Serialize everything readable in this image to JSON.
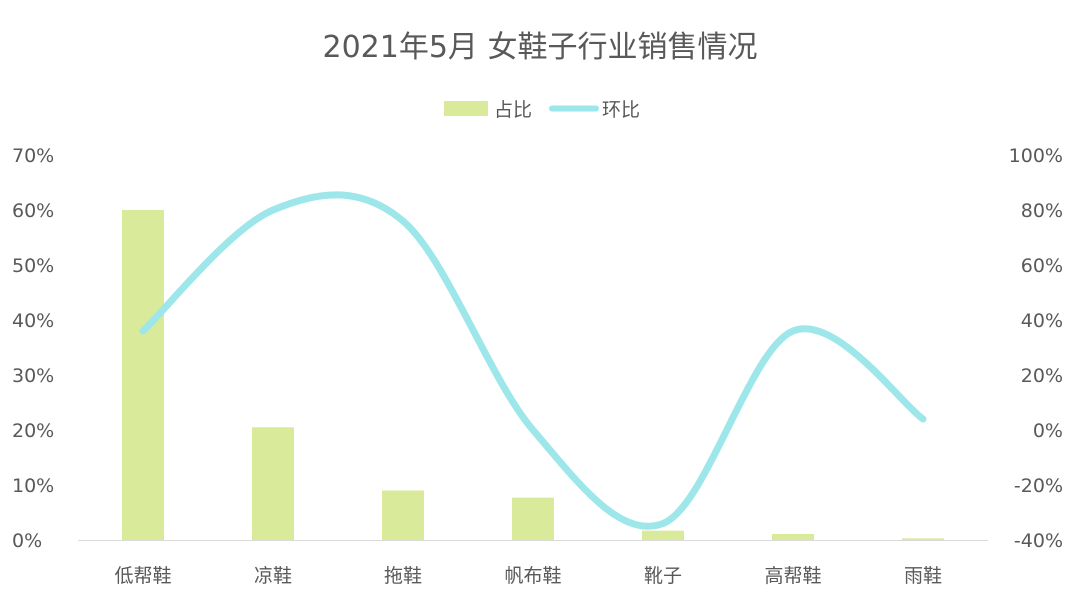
{
  "chart_data": {
    "type": "bar+line",
    "title": "2021年5月 女鞋子行业销售情况",
    "categories": [
      "低帮鞋",
      "凉鞋",
      "拖鞋",
      "帆布鞋",
      "靴子",
      "高帮鞋",
      "雨鞋"
    ],
    "series": [
      {
        "name": "占比",
        "type": "bar",
        "axis": "left",
        "values": [
          0.6,
          0.205,
          0.09,
          0.077,
          0.017,
          0.011,
          0.003
        ],
        "color": "#d9ea9a"
      },
      {
        "name": "环比",
        "type": "line",
        "axis": "right",
        "smooth": true,
        "values": [
          0.36,
          0.8,
          0.76,
          0.0,
          -0.34,
          0.36,
          0.04
        ],
        "color": "#9de6ea"
      }
    ],
    "y_left": {
      "ylim": [
        0,
        0.7
      ],
      "ticks": [
        0,
        0.1,
        0.2,
        0.3,
        0.4,
        0.5,
        0.6,
        0.7
      ],
      "tick_labels": [
        "0%",
        "10%",
        "20%",
        "30%",
        "40%",
        "50%",
        "60%",
        "70%"
      ]
    },
    "y_right": {
      "ylim": [
        -0.4,
        1.0
      ],
      "ticks": [
        -0.4,
        -0.2,
        0,
        0.2,
        0.4,
        0.6,
        0.8,
        1.0
      ],
      "tick_labels": [
        "-40%",
        "-20%",
        "0%",
        "20%",
        "40%",
        "60%",
        "80%",
        "100%"
      ]
    },
    "legend": {
      "position": "top-center",
      "entries": [
        "占比",
        "环比"
      ]
    },
    "grid": false,
    "axis_text_color": "#595959"
  }
}
